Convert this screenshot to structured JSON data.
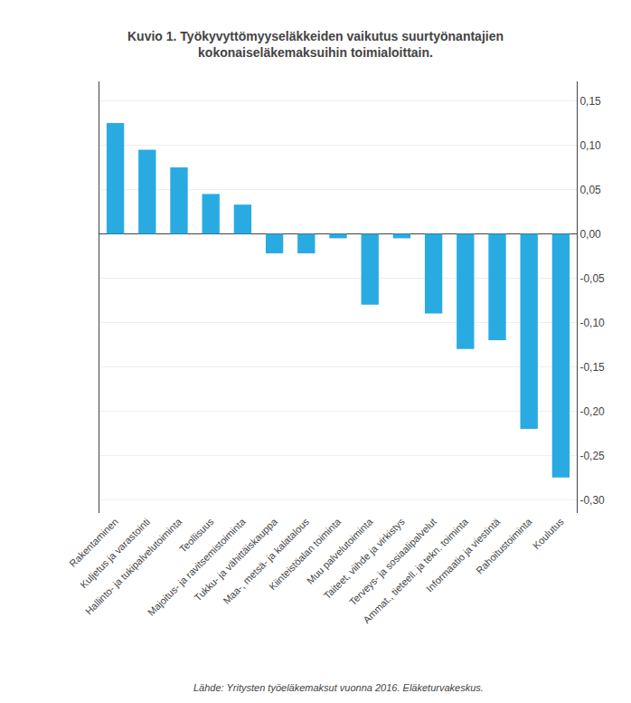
{
  "chart_data": {
    "type": "bar",
    "title": "Kuvio 1. Työkyvyttömyyseläkkeiden vaikutus suurtyönantajien\nkokonaiseläkemaksuihin toimialoittain.",
    "categories": [
      "Rakentaminen",
      "Kuljetus ja varastointi",
      "Hallinto- ja tukipalvelutoiminta",
      "Teollisuus",
      "Majoitus- ja ravitsemistoiminta",
      "Tukku- ja vähittäiskauppa",
      "Maa-, metsä- ja kalatalous",
      "Kiinteistöalan toiminta",
      "Muu palvelutoiminta",
      "Taiteet, viihde ja virkistys",
      "Terveys- ja sosiaalipalvelut",
      "Ammat., tieteell. ja tekn. toiminta",
      "Informaatio ja viestintä",
      "Rahoitustoiminta",
      "Koulutus"
    ],
    "values": [
      0.125,
      0.095,
      0.075,
      0.045,
      0.033,
      -0.022,
      -0.022,
      -0.005,
      -0.08,
      -0.005,
      -0.09,
      -0.13,
      -0.12,
      -0.22,
      -0.275
    ],
    "color": "#29abe2",
    "ylim": [
      -0.315,
      0.172
    ],
    "yticks": [
      {
        "value": -0.3,
        "label": "-0,30"
      },
      {
        "value": -0.25,
        "label": "-0,25"
      },
      {
        "value": -0.2,
        "label": "-0,20"
      },
      {
        "value": -0.15,
        "label": "-0,15"
      },
      {
        "value": -0.1,
        "label": "-0,10"
      },
      {
        "value": -0.05,
        "label": "-0,05"
      },
      {
        "value": 0.0,
        "label": "0,00"
      },
      {
        "value": 0.05,
        "label": "0,05"
      },
      {
        "value": 0.1,
        "label": "0,10"
      },
      {
        "value": 0.15,
        "label": "0,15"
      }
    ],
    "grid": true,
    "annotations": [
      "Lähde: Yritysten työeläkemaksut vuonna 2016. Eläketurvakeskus."
    ]
  }
}
